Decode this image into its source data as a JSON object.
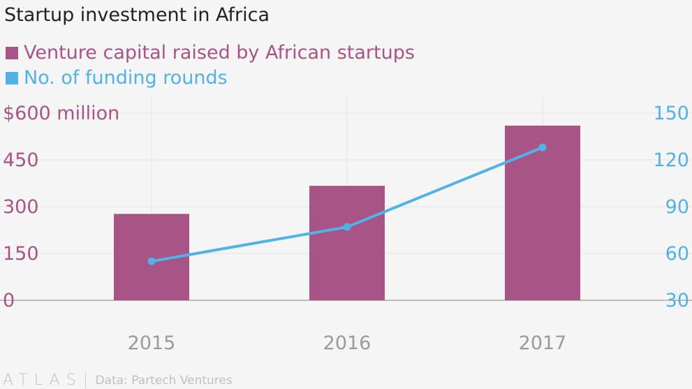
{
  "chart_data": {
    "type": "bar",
    "title": "Startup investment in Africa",
    "categories": [
      "2015",
      "2016",
      "2017"
    ],
    "series": [
      {
        "name": "Venture capital raised by African startups",
        "kind": "bar",
        "axis": "left",
        "color": "#a85486",
        "values": [
          277,
          367,
          560
        ]
      },
      {
        "name": "No. of funding rounds",
        "kind": "line",
        "axis": "right",
        "color": "#51b2e5",
        "values": [
          55,
          77,
          128
        ]
      }
    ],
    "y_left": {
      "ticks": [
        "$600 million",
        "450",
        "300",
        "150",
        "0"
      ],
      "tick_values": [
        600,
        450,
        300,
        150,
        0
      ],
      "ylim": [
        0,
        600
      ],
      "color": "#a85486"
    },
    "y_right": {
      "ticks": [
        "150",
        "120",
        "90",
        "60",
        "30"
      ],
      "tick_values": [
        150,
        120,
        90,
        60,
        30
      ],
      "ylim": [
        30,
        150
      ],
      "color": "#51b2e5"
    },
    "grid": true,
    "legend_position": "top-left"
  },
  "footer": {
    "logo": "ATLAS",
    "source": "Data: Partech Ventures"
  }
}
